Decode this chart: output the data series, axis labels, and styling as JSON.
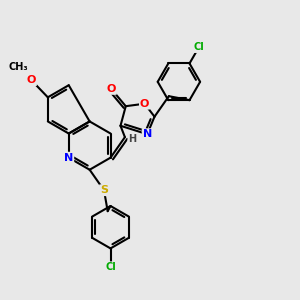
{
  "bg_color": "#e8e8e8",
  "bond_color": "#000000",
  "bond_width": 1.5,
  "atom_colors": {
    "O": "#ff0000",
    "N": "#0000ff",
    "S": "#ccaa00",
    "Cl": "#00aa00",
    "C": "#000000",
    "H": "#444444"
  },
  "font_size": 8,
  "fig_width": 3.0,
  "fig_height": 3.0,
  "dpi": 100
}
